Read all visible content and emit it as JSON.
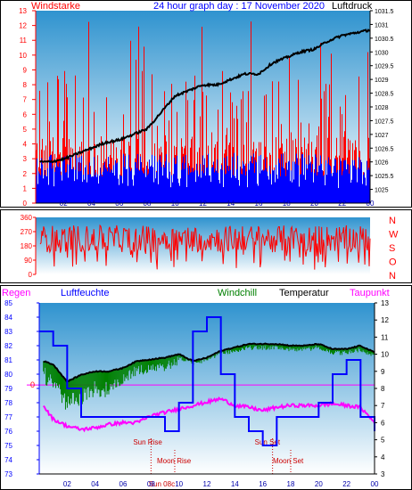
{
  "colors": {
    "wind": "#ff0000",
    "wind_low": "#0000ff",
    "pressure": "#000000",
    "dir": "#ff0000",
    "humidity": "#0000ff",
    "windchill": "#008000",
    "temp": "#000000",
    "dew": "#ff00ff",
    "rain": "#ff0000",
    "axis_red": "#ff0000",
    "axis_blue": "#0000ff",
    "moon": "#cc0000",
    "sky_top": "#2f93cf",
    "sky_bottom": "#ffffff"
  },
  "chart_data": [
    {
      "type": "line",
      "labels": {
        "left": "Windstarke",
        "title": "24 hour graph day : 17 November 2020",
        "right": "Luftdruck"
      },
      "x_ticks": [
        "02",
        "04",
        "06",
        "08",
        "10",
        "12",
        "14",
        "16",
        "18",
        "20",
        "22",
        "00"
      ],
      "ylim_left": [
        0,
        13
      ],
      "y_ticks_left": [
        "0",
        "1",
        "2",
        "3",
        "4",
        "5",
        "6",
        "7",
        "8",
        "9",
        "10",
        "11",
        "12",
        "13"
      ],
      "ylim_right": [
        1024.5,
        1031.5
      ],
      "y_ticks_right": [
        "1025",
        "1025.5",
        "1026",
        "1026.5",
        "1027",
        "1027.5",
        "1028",
        "1028.5",
        "1029",
        "1029.5",
        "1030",
        "1030.5",
        "1031",
        "1031.5"
      ],
      "series": [
        {
          "key": "pressure",
          "axis": "right",
          "x": [
            0.3,
            1,
            2,
            3,
            4,
            5,
            6,
            7,
            8,
            9,
            10,
            11,
            12,
            13,
            14,
            15,
            16,
            17,
            18,
            19,
            20,
            21,
            22,
            23,
            24
          ],
          "y": [
            1026.0,
            1026.0,
            1026.1,
            1026.3,
            1026.5,
            1026.7,
            1026.8,
            1027.0,
            1027.2,
            1027.8,
            1028.4,
            1028.6,
            1028.8,
            1028.8,
            1029.0,
            1029.2,
            1029.2,
            1029.6,
            1029.8,
            1030.0,
            1030.1,
            1030.4,
            1030.6,
            1030.7,
            1030.8
          ]
        }
      ]
    },
    {
      "type": "line",
      "left_ticks": [
        "0",
        "90",
        "180",
        "270",
        "360"
      ],
      "right_labels": [
        "N",
        "W",
        "S",
        "O",
        "N"
      ],
      "ylim": [
        0,
        360
      ]
    },
    {
      "type": "line",
      "labels": {
        "rain": "Regen",
        "humidity": "Luftfeuchte",
        "windchill": "Windchill",
        "temp": "Temperatur",
        "dew": "Taupunkt"
      },
      "x_ticks": [
        "02",
        "04",
        "06",
        "08",
        "10",
        "12",
        "14",
        "16",
        "18",
        "20",
        "22",
        "00"
      ],
      "ylim_left": [
        73,
        85
      ],
      "y_ticks_left": [
        "73",
        "74",
        "75",
        "76",
        "77",
        "78",
        "79",
        "80",
        "81",
        "82",
        "83",
        "84",
        "85"
      ],
      "ylim_right": [
        3,
        13
      ],
      "y_ticks_right": [
        "3",
        "4",
        "5",
        "6",
        "7",
        "8",
        "9",
        "10",
        "11",
        "12",
        "13"
      ],
      "rain_marker": "0",
      "rain_level": 8.2,
      "annotations": [
        {
          "text": "Sun Rise",
          "x": 8.0
        },
        {
          "text": "Moon Rise",
          "x": 9.7
        },
        {
          "text": "Sun Set",
          "x": 16.7
        },
        {
          "text": "Moon Set",
          "x": 18.0
        },
        {
          "text": "Sun 08c",
          "x": 8.6
        }
      ],
      "series": [
        {
          "key": "temp",
          "axis": "right",
          "x": [
            0.3,
            1,
            2,
            3,
            4,
            5,
            6,
            7,
            8,
            9,
            10,
            11,
            12,
            13,
            14,
            15,
            16,
            17,
            18,
            19,
            20,
            21,
            22,
            23,
            24
          ],
          "y": [
            9.6,
            9.4,
            8.4,
            8.8,
            9.0,
            9.0,
            9.2,
            9.6,
            9.7,
            9.8,
            10.0,
            9.6,
            9.8,
            10.2,
            10.4,
            10.6,
            10.6,
            10.6,
            10.5,
            10.5,
            10.6,
            10.3,
            10.3,
            10.5,
            10.1
          ]
        },
        {
          "key": "windchill",
          "axis": "right",
          "x": [
            0.3,
            1,
            2,
            3,
            4,
            5,
            6,
            7,
            8,
            9,
            10,
            11,
            12,
            13,
            14,
            15,
            16,
            17,
            18,
            19,
            20,
            21,
            22,
            23,
            24
          ],
          "y": [
            9.3,
            8.8,
            7.6,
            8.0,
            8.5,
            8.4,
            8.8,
            9.4,
            9.4,
            9.6,
            9.9,
            9.6,
            9.8,
            10.2,
            10.3,
            10.5,
            10.5,
            10.5,
            10.4,
            10.4,
            10.5,
            10.2,
            10.2,
            10.4,
            10.0
          ]
        },
        {
          "key": "dew",
          "axis": "right",
          "x": [
            0.3,
            1,
            2,
            3,
            4,
            5,
            6,
            7,
            8,
            9,
            10,
            11,
            12,
            13,
            14,
            15,
            16,
            17,
            18,
            19,
            20,
            21,
            22,
            23,
            24
          ],
          "y": [
            7.0,
            6.2,
            5.8,
            5.6,
            5.7,
            5.9,
            6.0,
            6.0,
            6.4,
            6.6,
            6.8,
            7.0,
            7.2,
            7.4,
            7.0,
            6.9,
            6.7,
            6.9,
            7.0,
            7.0,
            7.0,
            7.1,
            7.0,
            6.9,
            6.0
          ]
        },
        {
          "key": "humidity",
          "axis": "left",
          "step": true,
          "x": [
            0,
            1,
            2,
            3,
            4,
            5,
            6,
            7,
            8,
            9,
            10,
            11,
            12,
            13,
            14,
            15,
            16,
            17,
            18,
            19,
            20,
            21,
            22,
            23,
            24
          ],
          "y": [
            83,
            82,
            79,
            77,
            77,
            77,
            77,
            77,
            77,
            76,
            78,
            83,
            84,
            80,
            77,
            76,
            75,
            77,
            77,
            77,
            78,
            80,
            81,
            77,
            76
          ]
        }
      ]
    }
  ]
}
